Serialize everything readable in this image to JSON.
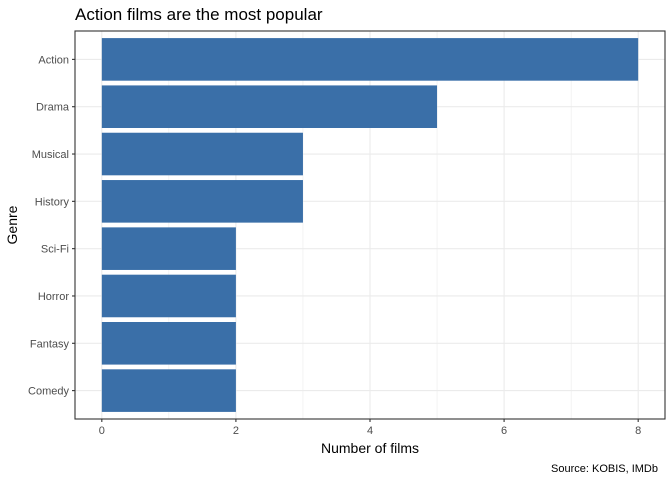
{
  "chart_data": {
    "type": "bar",
    "orientation": "horizontal",
    "title": "Action films are the most popular",
    "xlabel": "Number of films",
    "ylabel": "Genre",
    "caption": "Source: KOBIS, IMDb",
    "categories": [
      "Action",
      "Drama",
      "Musical",
      "History",
      "Sci-Fi",
      "Horror",
      "Fantasy",
      "Comedy"
    ],
    "values": [
      8,
      5,
      3,
      3,
      2,
      2,
      2,
      2
    ],
    "xlim": [
      0,
      8
    ],
    "xticks": [
      0,
      2,
      4,
      6,
      8
    ],
    "grid": true,
    "colors": {
      "bar": "#3a6fa8",
      "grid": "#ebebeb",
      "panel_border": "#333333",
      "text": "#000000",
      "tick_text": "#4d4d4d"
    }
  }
}
